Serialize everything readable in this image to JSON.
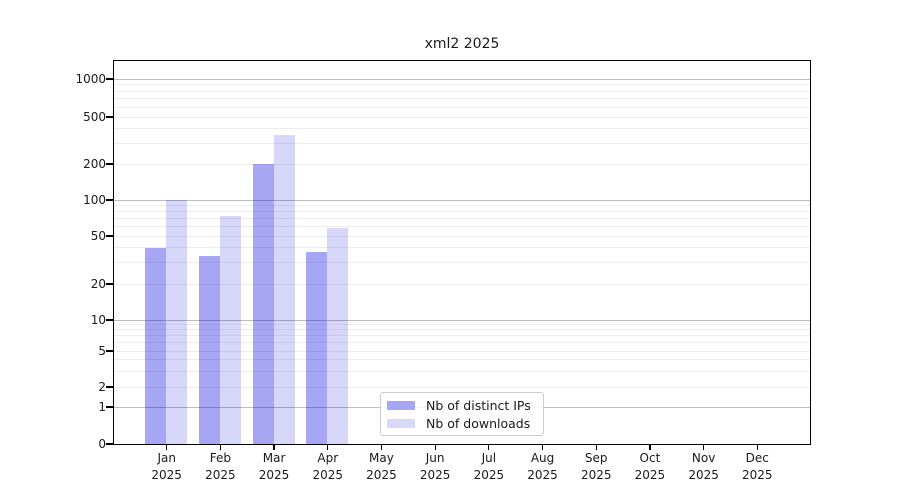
{
  "chart_data": {
    "type": "bar",
    "title": "xml2 2025",
    "year_label": "2025",
    "categories": [
      "Jan",
      "Feb",
      "Mar",
      "Apr",
      "May",
      "Jun",
      "Jul",
      "Aug",
      "Sep",
      "Oct",
      "Nov",
      "Dec"
    ],
    "series": [
      {
        "name": "Nb of distinct IPs",
        "color": "rgba(0,0,224,0.35)",
        "legend_color": "#a6a6f4",
        "values": [
          40,
          34,
          200,
          37,
          0,
          0,
          0,
          0,
          0,
          0,
          0,
          0
        ]
      },
      {
        "name": "Nb of downloads",
        "color": "rgba(0,0,224,0.155)",
        "legend_color": "#d8d8f8",
        "values": [
          100,
          73,
          350,
          58,
          0,
          0,
          0,
          0,
          0,
          0,
          0,
          0
        ]
      }
    ],
    "xlabel": "",
    "ylabel": "",
    "yscale": "log-like (0,1,2,5 pattern)",
    "yticks": [
      0,
      1,
      2,
      5,
      10,
      20,
      50,
      100,
      200,
      500,
      1000
    ],
    "grid": true,
    "legend_position": "inside lower center",
    "colors": {
      "major_grid": "#bdbdbd",
      "minor_grid": "#ececec",
      "axis": "#000000",
      "text": "#1a1a1a",
      "background": "#ffffff"
    }
  }
}
